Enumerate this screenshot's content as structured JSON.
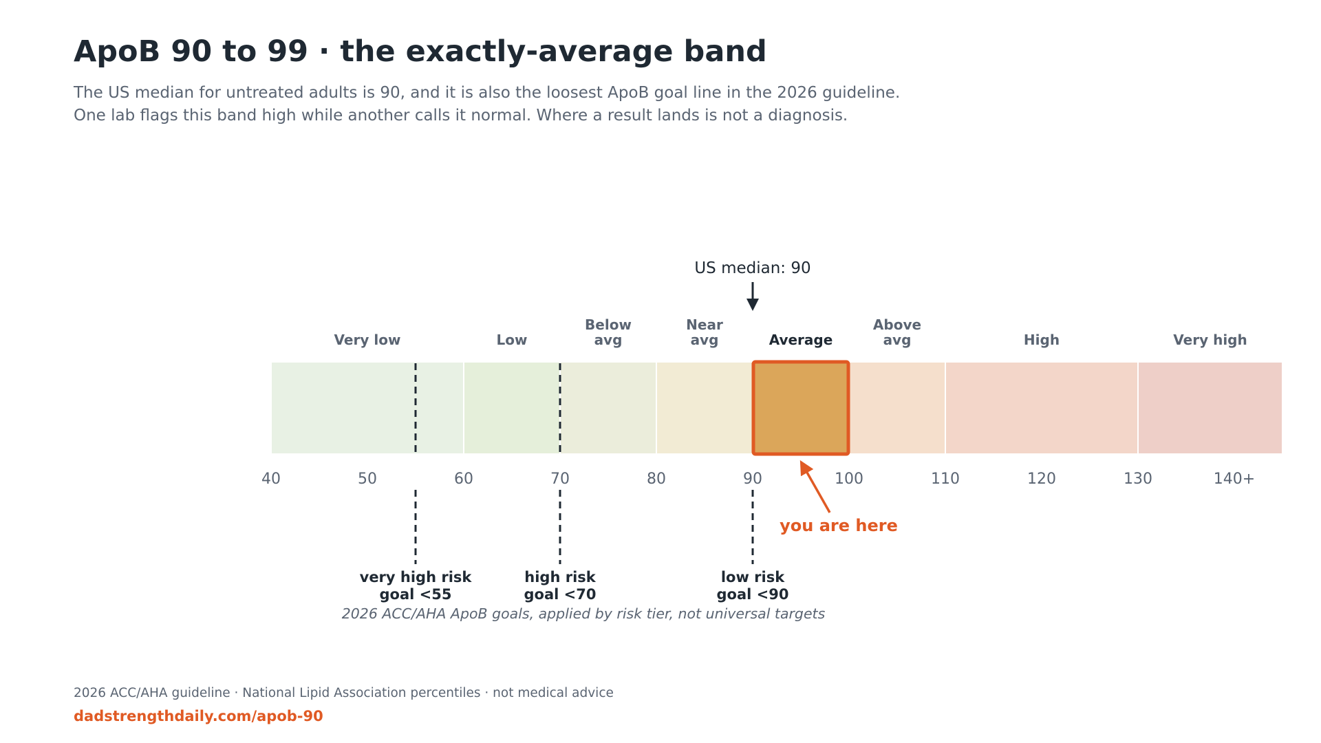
{
  "title": "ApoB 90 to 99 · the exactly-average band",
  "subtitle_lines": [
    "The US median for untreated adults is 90, and it is also the loosest ApoB goal line in the 2026 guideline.",
    "One lab flags this band high while another calls it normal. Where a result lands is not a diagnosis."
  ],
  "footer": {
    "note": "2026 ACC/AHA guideline · National Lipid Association percentiles · not medical advice",
    "link": "dadstrengthdaily.com/apob-90"
  },
  "colors": {
    "accent": "#e05a24",
    "highlight_fill": "#dba65a",
    "text_dark": "#1f2933",
    "text_muted": "#5a6472"
  },
  "chart_data": {
    "type": "bar",
    "orientation": "horizontal-band-scale",
    "xlim": [
      40,
      145
    ],
    "ticks": [
      {
        "value": 40,
        "label": "40"
      },
      {
        "value": 50,
        "label": "50"
      },
      {
        "value": 60,
        "label": "60"
      },
      {
        "value": 70,
        "label": "70"
      },
      {
        "value": 80,
        "label": "80"
      },
      {
        "value": 90,
        "label": "90"
      },
      {
        "value": 100,
        "label": "100"
      },
      {
        "value": 110,
        "label": "110"
      },
      {
        "value": 120,
        "label": "120"
      },
      {
        "value": 130,
        "label": "130"
      },
      {
        "value": 140,
        "label": "140+"
      }
    ],
    "bands": [
      {
        "label": "Very low",
        "start": 40,
        "end": 60,
        "color": "#e8f1e4"
      },
      {
        "label": "Low",
        "start": 60,
        "end": 70,
        "color": "#e5efda"
      },
      {
        "label": "Below\navg",
        "start": 70,
        "end": 80,
        "color": "#ebeddb"
      },
      {
        "label": "Near\navg",
        "start": 80,
        "end": 90,
        "color": "#f2ebd4"
      },
      {
        "label": "Average",
        "start": 90,
        "end": 100,
        "color": "#dba65a",
        "highlight": true
      },
      {
        "label": "Above\navg",
        "start": 100,
        "end": 110,
        "color": "#f5dfcc"
      },
      {
        "label": "High",
        "start": 110,
        "end": 130,
        "color": "#f3d6c9"
      },
      {
        "label": "Very high",
        "start": 130,
        "end": 145,
        "color": "#eecfc8"
      }
    ],
    "median": {
      "value": 90,
      "label": "US median: 90"
    },
    "marker": {
      "value": 95,
      "label": "you are here"
    },
    "goal_lines": [
      {
        "value": 55,
        "label_lines": [
          "very high risk",
          "goal <55"
        ]
      },
      {
        "value": 70,
        "label_lines": [
          "high risk",
          "goal <70"
        ]
      },
      {
        "value": 90,
        "label_lines": [
          "low risk",
          "goal <90"
        ]
      }
    ],
    "goal_caption": "2026 ACC/AHA ApoB goals, applied by risk tier, not universal targets",
    "grid": false,
    "legend": "none"
  }
}
